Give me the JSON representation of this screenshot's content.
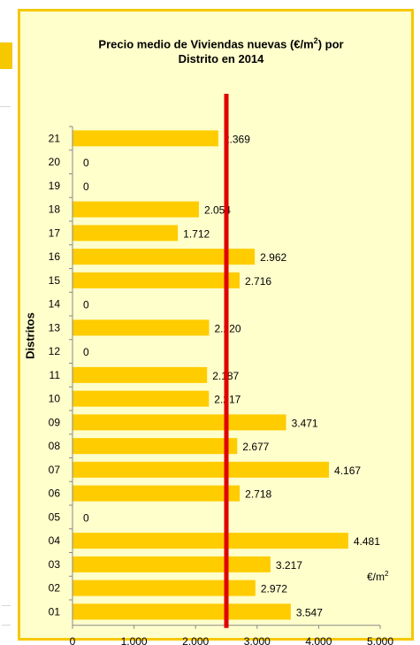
{
  "chart_data": {
    "type": "bar",
    "orientation": "horizontal",
    "title_main": "Precio medio de Viviendas nuevas (€/m",
    "title_sup": "2",
    "title_tail": ") por",
    "title_line2": "Distrito en 2014",
    "ylabel": "Distritos",
    "unit_base": "€/m",
    "unit_sup": "2",
    "categories": [
      "01",
      "02",
      "03",
      "04",
      "05",
      "06",
      "07",
      "08",
      "09",
      "10",
      "11",
      "12",
      "13",
      "14",
      "15",
      "16",
      "17",
      "18",
      "19",
      "20",
      "21"
    ],
    "values": [
      3547,
      2972,
      3217,
      4481,
      0,
      2718,
      4167,
      2677,
      3471,
      2217,
      2187,
      0,
      2220,
      0,
      2716,
      2962,
      1712,
      2054,
      0,
      0,
      2369
    ],
    "value_labels": [
      "3.547",
      "2.972",
      "3.217",
      "4.481",
      "0",
      "2.718",
      "4.167",
      "2.677",
      "3.471",
      "2.217",
      "2.187",
      "0",
      "2.220",
      "0",
      "2.716",
      "2.962",
      "1.712",
      "2.054",
      "0",
      "0",
      "2.369"
    ],
    "xlim": [
      0,
      5000
    ],
    "xticks": [
      0,
      1000,
      2000,
      3000,
      4000,
      5000
    ],
    "xtick_labels": [
      "0",
      "1.000",
      "2.000",
      "3.000",
      "4.000",
      "5.000"
    ],
    "reference_line_value": 2500,
    "colors": {
      "bar": "#ffcc00",
      "reference_line": "#e00000",
      "frame": "#f6c800",
      "background": "#ffffcc"
    },
    "grid": false,
    "legend": "none"
  }
}
